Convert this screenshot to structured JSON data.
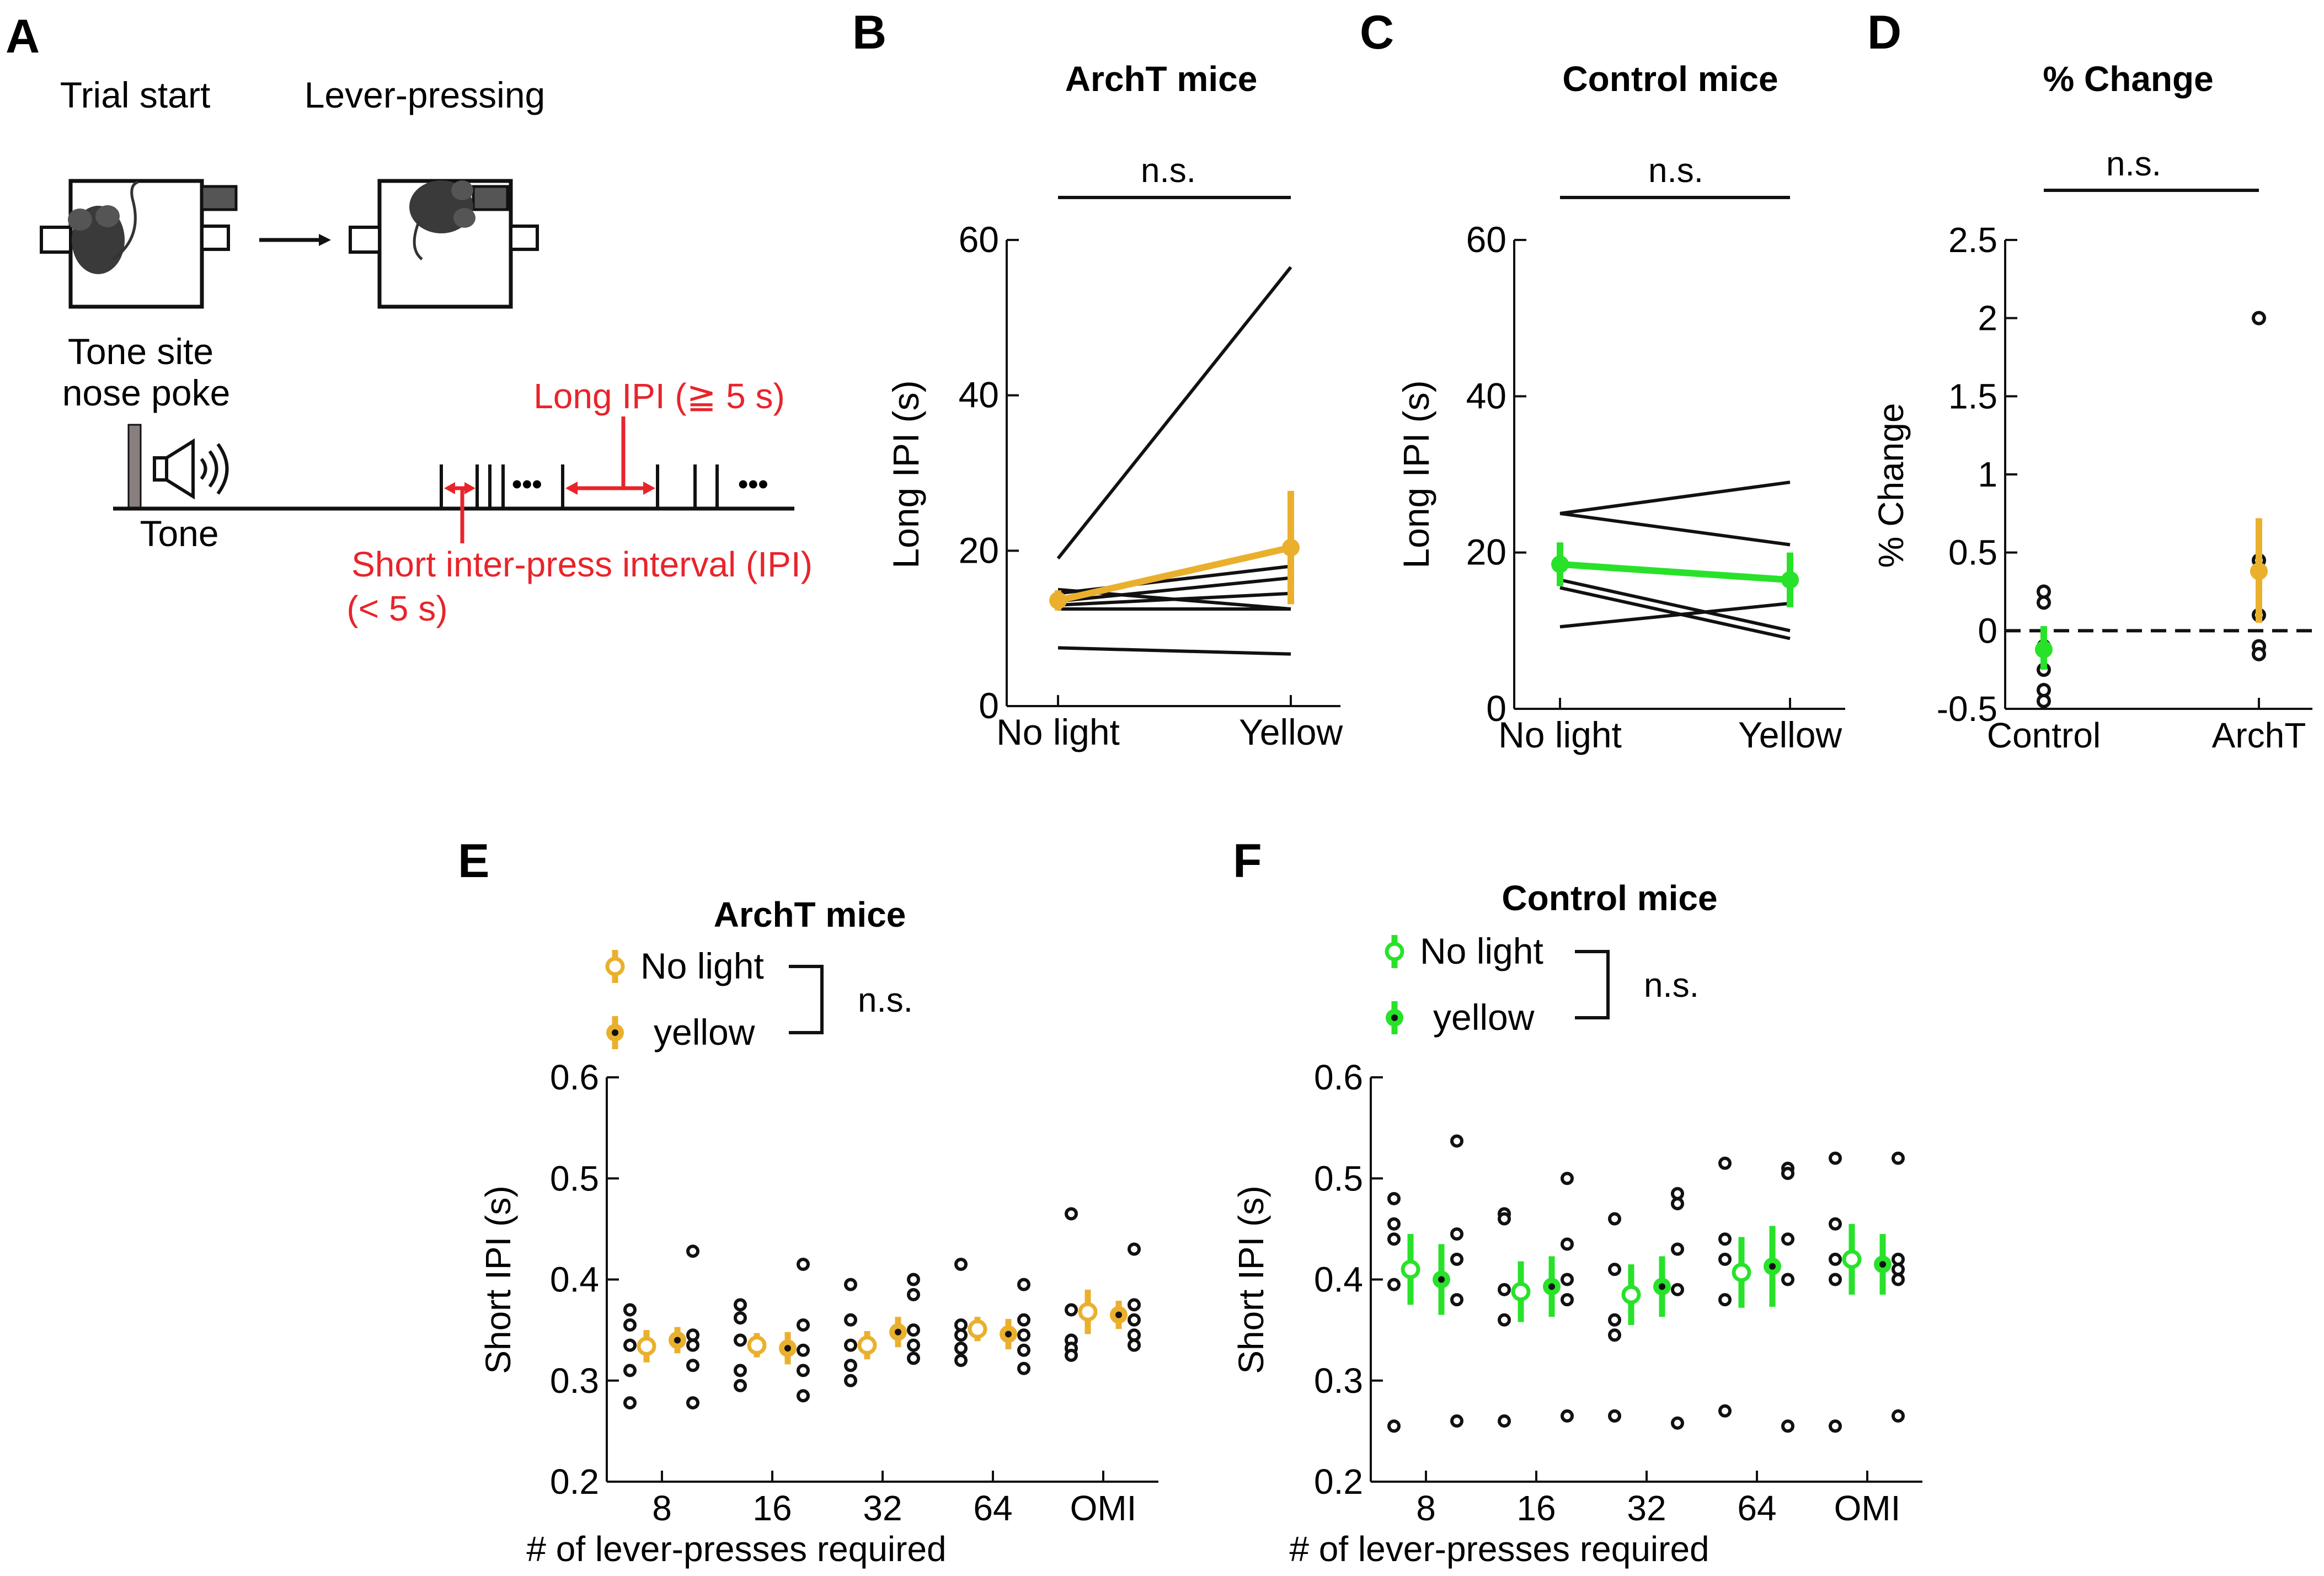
{
  "colors": {
    "archt": "#EAB02D",
    "control": "#28E22A",
    "red": "#E8242B",
    "black": "#111111",
    "grey": "#555555"
  },
  "panels": {
    "A": {
      "letter": "A",
      "trial_start": "Trial start",
      "lever_pressing": "Lever-pressing",
      "tone_site_1": "Tone site",
      "tone_site_2": "nose poke",
      "tone": "Tone",
      "long_ipi": "Long IPI (≧ 5 s)",
      "short_ipi_1": "Short inter-press interval (IPI)",
      "short_ipi_2": "(< 5 s)",
      "dots": "•••"
    },
    "B": {
      "letter": "B"
    },
    "C": {
      "letter": "C"
    },
    "D": {
      "letter": "D"
    },
    "E": {
      "letter": "E"
    },
    "F": {
      "letter": "F"
    }
  },
  "chart_data": [
    {
      "id": "B",
      "type": "line",
      "title": "ArchT mice",
      "ylabel": "Long IPI (s)",
      "categories": [
        "No light",
        "Yellow"
      ],
      "ylim": [
        0,
        60
      ],
      "yticks": [
        "0",
        "20",
        "40",
        "60"
      ],
      "sig": "n.s.",
      "individuals": [
        [
          19,
          56.5
        ],
        [
          15,
          12.5
        ],
        [
          14.5,
          18
        ],
        [
          13.5,
          16.5
        ],
        [
          13,
          14.5
        ],
        [
          12.5,
          12.5
        ],
        [
          7.5,
          6.7
        ]
      ],
      "mean": {
        "values": [
          13.6,
          20.4
        ],
        "err": [
          1.3,
          7.3
        ],
        "color": "#EAB02D"
      }
    },
    {
      "id": "C",
      "type": "line",
      "title": "Control mice",
      "ylabel": "Long IPI (s)",
      "categories": [
        "No light",
        "Yellow"
      ],
      "ylim": [
        0,
        60
      ],
      "yticks": [
        "0",
        "20",
        "40",
        "60"
      ],
      "sig": "n.s.",
      "individuals": [
        [
          25,
          29
        ],
        [
          25,
          21
        ],
        [
          16.5,
          10
        ],
        [
          15.5,
          9
        ],
        [
          10.5,
          13.5
        ]
      ],
      "mean": {
        "values": [
          18.5,
          16.5
        ],
        "err": [
          2.8,
          3.5
        ],
        "color": "#28E22A"
      }
    },
    {
      "id": "D",
      "type": "scatter",
      "title": "% Change",
      "ylabel": "% Change",
      "categories": [
        "Control",
        "ArchT"
      ],
      "ylim": [
        -0.5,
        2.5
      ],
      "yticks": [
        "-0.5",
        "0",
        "0.5",
        "1",
        "1.5",
        "2",
        "2.5"
      ],
      "sig": "n.s.",
      "points": [
        [
          0.25,
          0.18,
          -0.1,
          -0.25,
          -0.38,
          -0.45
        ],
        [
          2.0,
          0.45,
          0.1,
          -0.1,
          -0.15
        ]
      ],
      "means": [
        -0.12,
        0.38
      ],
      "errs": [
        [
          0.13,
          0.15
        ],
        [
          0.33,
          0.34
        ]
      ],
      "colors": [
        "#28E22A",
        "#EAB02D"
      ]
    },
    {
      "id": "E",
      "type": "scatter",
      "title": "ArchT mice",
      "xlabel": "# of lever-presses required",
      "ylabel": "Short IPI (s)",
      "categories": [
        "8",
        "16",
        "32",
        "64",
        "OMI"
      ],
      "ylim": [
        0.2,
        0.6
      ],
      "yticks": [
        "0.2",
        "0.3",
        "0.4",
        "0.5",
        "0.6"
      ],
      "legend": [
        {
          "label": "No light",
          "filled": false
        },
        {
          "label": "yellow",
          "filled": true
        }
      ],
      "sig": "n.s.",
      "color": "#EAB02D",
      "series": [
        {
          "name": "No light",
          "means": [
            0.334,
            0.335,
            0.335,
            0.351,
            0.368
          ],
          "err": [
            0.016,
            0.012,
            0.014,
            0.012,
            0.022
          ],
          "points": [
            [
              0.37,
              0.355,
              0.335,
              0.31,
              0.278
            ],
            [
              0.375,
              0.362,
              0.34,
              0.31,
              0.295
            ],
            [
              0.395,
              0.36,
              0.335,
              0.315,
              0.3
            ],
            [
              0.415,
              0.355,
              0.345,
              0.332,
              0.32
            ],
            [
              0.465,
              0.37,
              0.34,
              0.332,
              0.325
            ]
          ]
        },
        {
          "name": "yellow",
          "means": [
            0.34,
            0.332,
            0.348,
            0.346,
            0.365
          ],
          "err": [
            0.013,
            0.016,
            0.015,
            0.015,
            0.014
          ],
          "points": [
            [
              0.428,
              0.345,
              0.335,
              0.315,
              0.278
            ],
            [
              0.415,
              0.355,
              0.33,
              0.31,
              0.285
            ],
            [
              0.4,
              0.385,
              0.35,
              0.335,
              0.322
            ],
            [
              0.395,
              0.36,
              0.345,
              0.33,
              0.312
            ],
            [
              0.43,
              0.375,
              0.36,
              0.345,
              0.335
            ]
          ]
        }
      ]
    },
    {
      "id": "F",
      "type": "scatter",
      "title": "Control mice",
      "xlabel": "# of lever-presses required",
      "ylabel": "Short IPI (s)",
      "categories": [
        "8",
        "16",
        "32",
        "64",
        "OMI"
      ],
      "ylim": [
        0.2,
        0.6
      ],
      "yticks": [
        "0.2",
        "0.3",
        "0.4",
        "0.5",
        "0.6"
      ],
      "legend": [
        {
          "label": "No light",
          "filled": false
        },
        {
          "label": "yellow",
          "filled": true
        }
      ],
      "sig": "n.s.",
      "color": "#28E22A",
      "series": [
        {
          "name": "No light",
          "means": [
            0.41,
            0.388,
            0.385,
            0.407,
            0.42
          ],
          "err": [
            0.035,
            0.03,
            0.03,
            0.035,
            0.035
          ],
          "points": [
            [
              0.48,
              0.455,
              0.44,
              0.395,
              0.255
            ],
            [
              0.465,
              0.46,
              0.39,
              0.36,
              0.26
            ],
            [
              0.46,
              0.41,
              0.36,
              0.345,
              0.265
            ],
            [
              0.515,
              0.44,
              0.42,
              0.38,
              0.27
            ],
            [
              0.52,
              0.455,
              0.42,
              0.4,
              0.255
            ]
          ]
        },
        {
          "name": "yellow",
          "means": [
            0.4,
            0.393,
            0.393,
            0.413,
            0.415
          ],
          "err": [
            0.035,
            0.03,
            0.03,
            0.04,
            0.03
          ],
          "points": [
            [
              0.537,
              0.445,
              0.42,
              0.38,
              0.26
            ],
            [
              0.5,
              0.435,
              0.4,
              0.38,
              0.265
            ],
            [
              0.485,
              0.475,
              0.43,
              0.39,
              0.258
            ],
            [
              0.51,
              0.505,
              0.44,
              0.4,
              0.255
            ],
            [
              0.52,
              0.42,
              0.41,
              0.4,
              0.265
            ]
          ]
        }
      ]
    }
  ]
}
